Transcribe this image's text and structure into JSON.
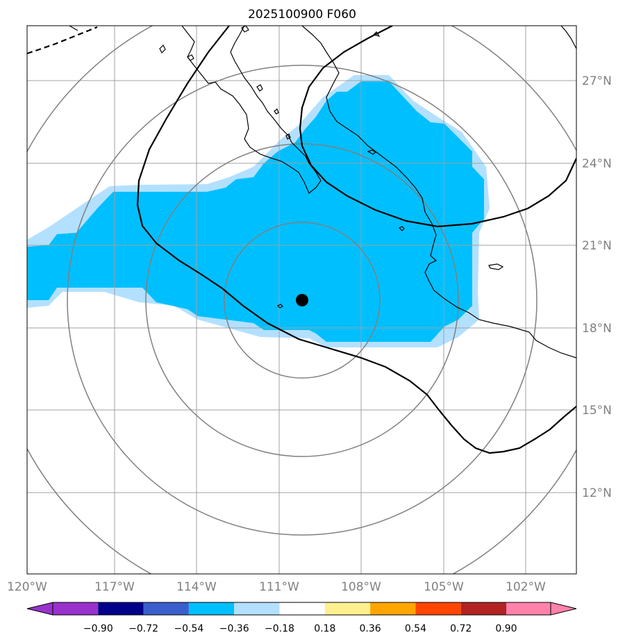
{
  "map": {
    "title": "2025100900 F060",
    "lon_labels": [
      "120°W",
      "117°W",
      "114°W",
      "111°W",
      "108°W",
      "105°W",
      "102°W"
    ],
    "lat_labels": [
      "27°N",
      "24°N",
      "21°N",
      "18°N",
      "15°N",
      "12°N"
    ],
    "center_marker": {
      "lon": -109.3,
      "lat": 19.0
    },
    "colors": {
      "shade_main": "#00bfff",
      "shade_edge": "#b3e0ff",
      "coast": "#000000",
      "grid": "#999999",
      "rings": "#808080",
      "contour": "#000000"
    }
  },
  "colorbar": {
    "tick_labels": [
      "−0.90",
      "−0.72",
      "−0.54",
      "−0.36",
      "−0.18",
      "0.18",
      "0.36",
      "0.54",
      "0.72",
      "0.90"
    ],
    "colors": [
      "#9932cc",
      "#00008b",
      "#3a5fcd",
      "#00bfff",
      "#b3e0ff",
      "#ffffff",
      "#fff08f",
      "#ffa500",
      "#ff4500",
      "#b22222",
      "#ff82ab"
    ]
  }
}
